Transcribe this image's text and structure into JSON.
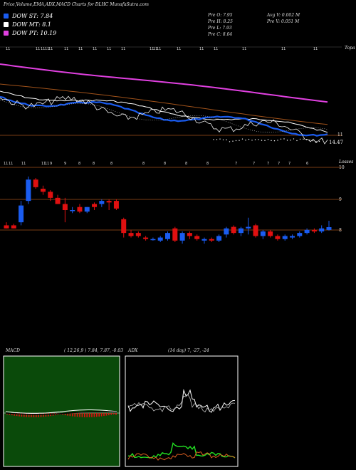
{
  "header": {
    "title": "Price,Volume,EMA,ADX,MACD Charts for DLHC MunafaSutra.com"
  },
  "legend": [
    {
      "label": "DOW ST: 7.84",
      "color": "#1a5cf0"
    },
    {
      "label": "DOW MT: 8.1",
      "color": "#ffffff"
    },
    {
      "label": "DOW PT: 10.19",
      "color": "#e040e0"
    }
  ],
  "stats": {
    "pre_o": "Pre   O: 7.95",
    "pre_h": "Pre   H: 8.25",
    "pre_l": "Pre   L: 7.93",
    "pre_c": "Pre   C: 8.04",
    "avg_v": "Avg V: 0.002  M",
    "pre_v": "Pre   V: 0.051 M"
  },
  "ema_panel": {
    "axis_top_label": "Topa",
    "right_val_a": "11",
    "right_val_b": "14.47",
    "top_date_labels": [
      "11",
      "11",
      "11",
      "11",
      "11",
      "11",
      "11",
      "11",
      "11",
      "11",
      "11",
      "11",
      "11",
      "11",
      "11",
      "11",
      "11",
      "11",
      "11",
      "11"
    ]
  },
  "price_panel": {
    "axis_top_label": "Losses",
    "ticks": [
      "10",
      "9",
      "8"
    ],
    "date_labels": [
      "11",
      "11",
      "11",
      "11",
      "11",
      "9",
      "9",
      "8",
      "8",
      "8",
      "8",
      "8",
      "8",
      "8",
      "7",
      "7",
      "7",
      "7",
      "7",
      "6"
    ]
  },
  "macd_panel": {
    "label": "MACD",
    "params": "( 12,26,9 ) 7.84,  7.87,  -0.03"
  },
  "adx_panel": {
    "label": "ADX",
    "params": "(14  day) 7,  -27,  -24"
  },
  "colors": {
    "bull": "#1a5cf0",
    "bear": "#e01010",
    "macd_bg": "#0a4a0a",
    "pink": "#e040e0",
    "brown": "#a0521a"
  },
  "chart_data": [
    {
      "type": "candlestick",
      "title": "DLHC",
      "ylim": [
        7.3,
        10.2
      ],
      "candles": [
        {
          "o": 8.1,
          "h": 8.2,
          "l": 8.0,
          "c": 8.0
        },
        {
          "o": 8.1,
          "h": 8.15,
          "l": 8.0,
          "c": 8.0
        },
        {
          "o": 8.2,
          "h": 8.9,
          "l": 8.1,
          "c": 8.75
        },
        {
          "o": 8.9,
          "h": 9.7,
          "l": 8.8,
          "c": 9.6
        },
        {
          "o": 9.6,
          "h": 9.65,
          "l": 9.3,
          "c": 9.35
        },
        {
          "o": 9.3,
          "h": 9.4,
          "l": 9.1,
          "c": 9.2
        },
        {
          "o": 9.2,
          "h": 9.25,
          "l": 8.9,
          "c": 9.0
        },
        {
          "o": 9.0,
          "h": 9.1,
          "l": 8.8,
          "c": 8.8
        },
        {
          "o": 8.8,
          "h": 9.0,
          "l": 8.2,
          "c": 8.6
        },
        {
          "o": 8.6,
          "h": 8.7,
          "l": 8.5,
          "c": 8.6
        },
        {
          "o": 8.7,
          "h": 8.8,
          "l": 8.5,
          "c": 8.55
        },
        {
          "o": 8.55,
          "h": 8.7,
          "l": 8.5,
          "c": 8.7
        },
        {
          "o": 8.8,
          "h": 8.85,
          "l": 8.6,
          "c": 8.7
        },
        {
          "o": 8.8,
          "h": 8.95,
          "l": 8.7,
          "c": 8.9
        },
        {
          "o": 8.9,
          "h": 8.95,
          "l": 8.6,
          "c": 8.85
        },
        {
          "o": 8.9,
          "h": 8.95,
          "l": 8.6,
          "c": 8.65
        },
        {
          "o": 8.3,
          "h": 8.35,
          "l": 7.7,
          "c": 7.85
        },
        {
          "o": 7.85,
          "h": 7.95,
          "l": 7.7,
          "c": 7.75
        },
        {
          "o": 7.85,
          "h": 7.9,
          "l": 7.7,
          "c": 7.75
        },
        {
          "o": 7.7,
          "h": 7.75,
          "l": 7.6,
          "c": 7.65
        },
        {
          "o": 7.65,
          "h": 7.7,
          "l": 7.6,
          "c": 7.65
        },
        {
          "o": 7.6,
          "h": 7.75,
          "l": 7.55,
          "c": 7.7
        },
        {
          "o": 7.65,
          "h": 7.9,
          "l": 7.6,
          "c": 7.85
        },
        {
          "o": 8.0,
          "h": 8.05,
          "l": 7.55,
          "c": 7.6
        },
        {
          "o": 7.6,
          "h": 7.9,
          "l": 7.5,
          "c": 7.85
        },
        {
          "o": 7.85,
          "h": 7.9,
          "l": 7.65,
          "c": 7.75
        },
        {
          "o": 7.75,
          "h": 7.8,
          "l": 7.6,
          "c": 7.65
        },
        {
          "o": 7.6,
          "h": 7.7,
          "l": 7.5,
          "c": 7.65
        },
        {
          "o": 7.65,
          "h": 7.7,
          "l": 7.55,
          "c": 7.6
        },
        {
          "o": 7.6,
          "h": 7.8,
          "l": 7.55,
          "c": 7.75
        },
        {
          "o": 7.8,
          "h": 8.05,
          "l": 7.7,
          "c": 8.0
        },
        {
          "o": 8.05,
          "h": 8.1,
          "l": 7.8,
          "c": 7.85
        },
        {
          "o": 7.85,
          "h": 8.05,
          "l": 7.75,
          "c": 8.0
        },
        {
          "o": 8.0,
          "h": 8.35,
          "l": 7.8,
          "c": 8.05
        },
        {
          "o": 8.1,
          "h": 8.15,
          "l": 7.7,
          "c": 7.75
        },
        {
          "o": 7.75,
          "h": 7.95,
          "l": 7.65,
          "c": 7.9
        },
        {
          "o": 7.9,
          "h": 7.95,
          "l": 7.7,
          "c": 7.75
        },
        {
          "o": 7.75,
          "h": 7.8,
          "l": 7.6,
          "c": 7.65
        },
        {
          "o": 7.65,
          "h": 7.8,
          "l": 7.6,
          "c": 7.75
        },
        {
          "o": 7.7,
          "h": 7.8,
          "l": 7.65,
          "c": 7.75
        },
        {
          "o": 7.75,
          "h": 7.9,
          "l": 7.7,
          "c": 7.85
        },
        {
          "o": 7.85,
          "h": 8.0,
          "l": 7.8,
          "c": 7.95
        },
        {
          "o": 7.95,
          "h": 8.0,
          "l": 7.85,
          "c": 7.9
        },
        {
          "o": 7.9,
          "h": 8.1,
          "l": 7.85,
          "c": 8.0
        },
        {
          "o": 7.95,
          "h": 8.25,
          "l": 7.93,
          "c": 8.04
        }
      ]
    },
    {
      "type": "line",
      "title": "EMA",
      "series": [
        {
          "name": "DOW PT",
          "values": [
            10.6,
            10.55,
            10.5,
            10.45,
            10.4,
            10.35,
            10.3,
            10.25,
            10.2,
            10.19
          ]
        },
        {
          "name": "DOW MT",
          "values": [
            9.4,
            9.3,
            9.1,
            8.9,
            8.7,
            8.55,
            8.4,
            8.3,
            8.2,
            8.1
          ]
        },
        {
          "name": "DOW ST",
          "values": [
            9.2,
            9.1,
            8.8,
            8.5,
            8.3,
            8.2,
            8.1,
            7.95,
            7.85,
            7.84
          ]
        }
      ]
    }
  ]
}
